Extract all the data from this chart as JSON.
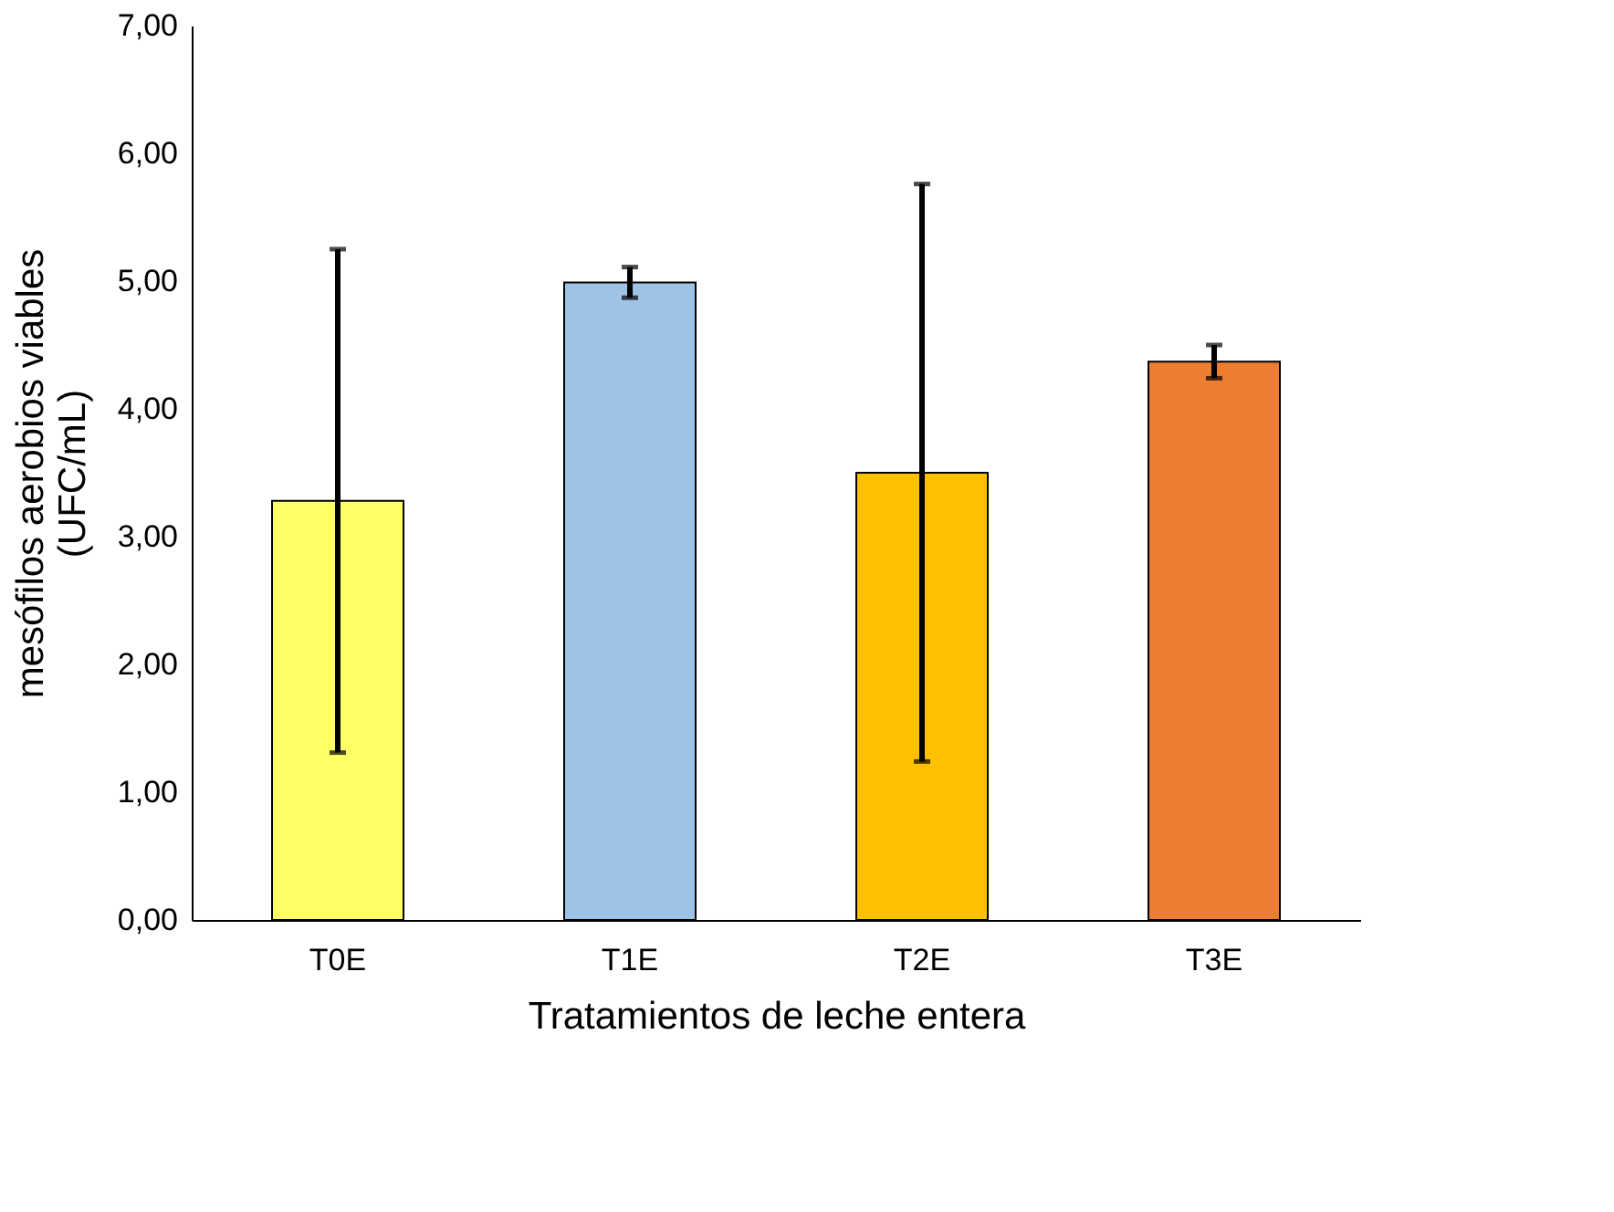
{
  "chart_data": {
    "type": "bar",
    "xlabel": "Tratamientos de leche entera",
    "ylabel": "mesófilos aerobios viables\n(UFC/mL)",
    "categories": [
      "T0E",
      "T1E",
      "T2E",
      "T3E"
    ],
    "values": [
      3.28,
      4.99,
      3.5,
      4.37
    ],
    "errors": [
      1.97,
      0.12,
      2.26,
      0.13
    ],
    "colors": [
      "#ffff66",
      "#9dc3e6",
      "#ffc000",
      "#ed7d31"
    ],
    "ylim": [
      0,
      7
    ],
    "yticks": [
      {
        "value": 0,
        "label": "0,00"
      },
      {
        "value": 1,
        "label": "1,00"
      },
      {
        "value": 2,
        "label": "2,00"
      },
      {
        "value": 3,
        "label": "3,00"
      },
      {
        "value": 4,
        "label": "4,00"
      },
      {
        "value": 5,
        "label": "5,00"
      },
      {
        "value": 6,
        "label": "6,00"
      },
      {
        "value": 7,
        "label": "7,00"
      }
    ],
    "grid": false,
    "legend": false
  }
}
